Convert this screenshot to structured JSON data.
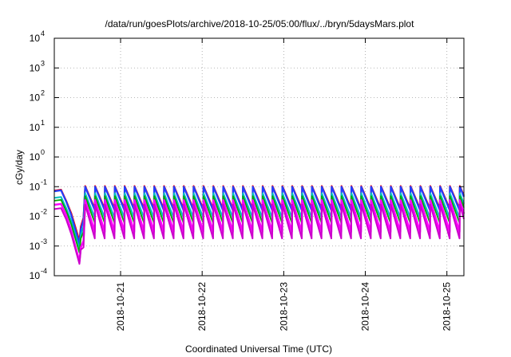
{
  "chart_data": {
    "type": "line",
    "title": "/data/run/goesPlots/archive/2018-10-25/05:00/flux/../bryn/5daysMars.plot",
    "xlabel": "Coordinated Universal Time (UTC)",
    "ylabel": "cGy/day",
    "y_scale": "log",
    "ylim": [
      0.0001,
      10000
    ],
    "y_ticks": [
      {
        "base": "10",
        "exp": "-4",
        "value": 0.0001
      },
      {
        "base": "10",
        "exp": "-3",
        "value": 0.001
      },
      {
        "base": "10",
        "exp": "-2",
        "value": 0.01
      },
      {
        "base": "10",
        "exp": "-1",
        "value": 0.1
      },
      {
        "base": "10",
        "exp": "0",
        "value": 1
      },
      {
        "base": "10",
        "exp": "1",
        "value": 10
      },
      {
        "base": "10",
        "exp": "2",
        "value": 100
      },
      {
        "base": "10",
        "exp": "3",
        "value": 1000
      },
      {
        "base": "10",
        "exp": "4",
        "value": 10000
      }
    ],
    "xlim": [
      "2018-10-20T04:30",
      "2018-10-25T05:00"
    ],
    "x_ticks": [
      "2018-10-21",
      "2018-10-22",
      "2018-10-23",
      "2018-10-24",
      "2018-10-25"
    ],
    "grid": "dotted",
    "legend": "none",
    "series": [
      {
        "color": "#ff0000",
        "peak": 0.105,
        "trough": 0.018,
        "dip_min": 0.0015
      },
      {
        "color": "#2040ff",
        "peak": 0.1,
        "trough": 0.016,
        "dip_min": 0.0012
      },
      {
        "color": "#00c0c0",
        "peak": 0.06,
        "trough": 0.009,
        "dip_min": 0.0008
      },
      {
        "color": "#00aa00",
        "peak": 0.048,
        "trough": 0.006,
        "dip_min": 0.0006
      },
      {
        "color": "#ff00ff",
        "peak": 0.035,
        "trough": 0.003,
        "dip_min": 0.0003
      },
      {
        "color": "#cc00cc",
        "peak": 0.025,
        "trough": 0.0018,
        "dip_min": 0.00025
      }
    ]
  }
}
